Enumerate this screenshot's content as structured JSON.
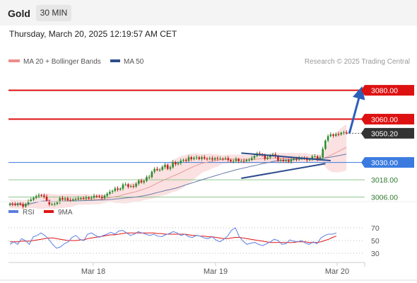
{
  "header": {
    "instrument": "Gold",
    "timeframe": "30 MIN",
    "datetime": "Thursday, March 20, 2025 12:19:57 AM CET"
  },
  "colors": {
    "resistance": "#dd1111",
    "support_green": "#2f8a2f",
    "pivot_blue": "#3b7be0",
    "bollinger_fill": "#f7c9c9",
    "ma20": "#e99a9a",
    "ma50": "#6a7aa8",
    "candle_up": "#2e8b2e",
    "candle_down": "#cc1a1a",
    "rsi": "#5b7fe0",
    "rsi_ma": "#e01515",
    "arrow": "#2d5fb8"
  },
  "chart_data": [
    {
      "type": "candlestick",
      "title": "",
      "legend": [
        {
          "label": "MA 20 + Bollinger Bands",
          "color": "#ef8c8c"
        },
        {
          "label": "MA 50",
          "color": "#2d4e8c"
        }
      ],
      "watermark": "Research © 2025 Trading Central",
      "x_ticks": [
        "Mar 18",
        "Mar 19",
        "Mar 20"
      ],
      "y_range": [
        2996,
        3086
      ],
      "price_levels": [
        {
          "label": "3080.00",
          "value": 3080,
          "kind": "resistance"
        },
        {
          "label": "3060.00",
          "value": 3060,
          "kind": "resistance"
        },
        {
          "label": "3050.20",
          "value": 3050.2,
          "kind": "last"
        },
        {
          "label": "3030.00",
          "value": 3030,
          "kind": "pivot"
        },
        {
          "label": "3018.00",
          "value": 3018,
          "kind": "support"
        },
        {
          "label": "3006.00",
          "value": 3006,
          "kind": "support"
        }
      ],
      "close_series": [
        3001.3,
        3001.0,
        3000.6,
        3001.6,
        3000.9,
        2999.4,
        3001.2,
        3003.2,
        3004.2,
        3005.5,
        3006.6,
        3007.3,
        3007.1,
        3006.3,
        3003.5,
        3001.0,
        3001.0,
        3001.3,
        3002.5,
        3005.3,
        3004.3,
        3005.1,
        3003.9,
        3003.6,
        3004.4,
        3004.6,
        3005.2,
        3005.3,
        3005.0,
        3005.7,
        3005.0,
        3005.6,
        3006.8,
        3006.6,
        3006.2,
        3005.3,
        3007.0,
        3008.3,
        3009.6,
        3010.3,
        3012.0,
        3011.2,
        3011.9,
        3014.7,
        3014.8,
        3013.2,
        3013.6,
        3013.3,
        3015.3,
        3017.3,
        3016.2,
        3017.2,
        3019.8,
        3019.8,
        3023.6,
        3025.5,
        3024.8,
        3025.0,
        3026.8,
        3028.2,
        3025.6,
        3026.6,
        3030.2,
        3028.8,
        3029.5,
        3031.2,
        3031.8,
        3031.1,
        3033.6,
        3032.3,
        3033.1,
        3033.5,
        3032.4,
        3033.6,
        3032.7,
        3032.5,
        3032.9,
        3032.0,
        3033.0,
        3032.6,
        3032.6,
        3032.5,
        3032.9,
        3031.7,
        3030.7,
        3031.0,
        3032.3,
        3030.9,
        3031.1,
        3030.9,
        3031.8,
        3031.8,
        3033.1,
        3034.5,
        3036.2,
        3035.7,
        3034.9,
        3032.5,
        3033.5,
        3035.0,
        3035.5,
        3034.2,
        3031.3,
        3031.8,
        3030.9,
        3031.5,
        3030.5,
        3031.9,
        3032.7,
        3032.0,
        3033.0,
        3033.2,
        3032.6,
        3031.6,
        3032.3,
        3034.2,
        3034.2,
        3032.2,
        3033.6,
        3039.4,
        3045.1,
        3048.2,
        3049.4,
        3048.5,
        3049.6,
        3049.4,
        3050.5,
        3050.8,
        3050.2
      ],
      "pattern": "symmetrical triangle",
      "projection_arrow": {
        "from": 3050,
        "to": 3080
      },
      "legend_position": "top-left"
    },
    {
      "type": "line",
      "title": "",
      "legend": [
        {
          "label": "RSI",
          "color": "#5b7fe0"
        },
        {
          "label": "9MA",
          "color": "#e01515"
        }
      ],
      "y_ticks": [
        70,
        50,
        30
      ],
      "y_range": [
        20,
        80
      ],
      "series": [
        {
          "name": "RSI",
          "values": [
            44,
            48,
            44,
            53,
            50,
            44,
            56,
            58,
            62,
            58,
            52,
            44,
            38,
            40,
            45,
            48,
            55,
            58,
            52,
            50,
            60,
            62,
            58,
            55,
            58,
            60,
            63,
            60,
            65,
            66,
            62,
            58,
            60,
            64,
            62,
            60,
            58,
            60,
            57,
            56,
            59,
            61,
            64,
            62,
            58,
            60,
            56,
            55,
            58,
            57,
            54,
            53,
            56,
            51,
            48,
            52,
            57,
            66,
            70,
            56,
            49,
            44,
            46,
            47,
            44,
            42,
            45,
            48,
            52,
            50,
            44,
            45,
            51,
            49,
            48,
            50,
            46,
            44,
            48,
            45,
            54,
            58,
            60,
            60,
            62
          ]
        },
        {
          "name": "9MA",
          "values": [
            48,
            48,
            48,
            49,
            49,
            49,
            50,
            51,
            52,
            53,
            54,
            54,
            53,
            52,
            51,
            50,
            50,
            50,
            51,
            51,
            53,
            54,
            55,
            56,
            57,
            58,
            59,
            59,
            60,
            61,
            62,
            62,
            62,
            62,
            62,
            62,
            62,
            62,
            61,
            61,
            60,
            60,
            60,
            60,
            60,
            60,
            59,
            58,
            58,
            57,
            57,
            56,
            56,
            55,
            54,
            53,
            53,
            54,
            55,
            55,
            54,
            53,
            52,
            51,
            50,
            49,
            48,
            47,
            47,
            47,
            47,
            47,
            47,
            47,
            48,
            48,
            48,
            47,
            47,
            47,
            48,
            50,
            52,
            55,
            57
          ]
        }
      ],
      "legend_position": "top-left"
    }
  ]
}
